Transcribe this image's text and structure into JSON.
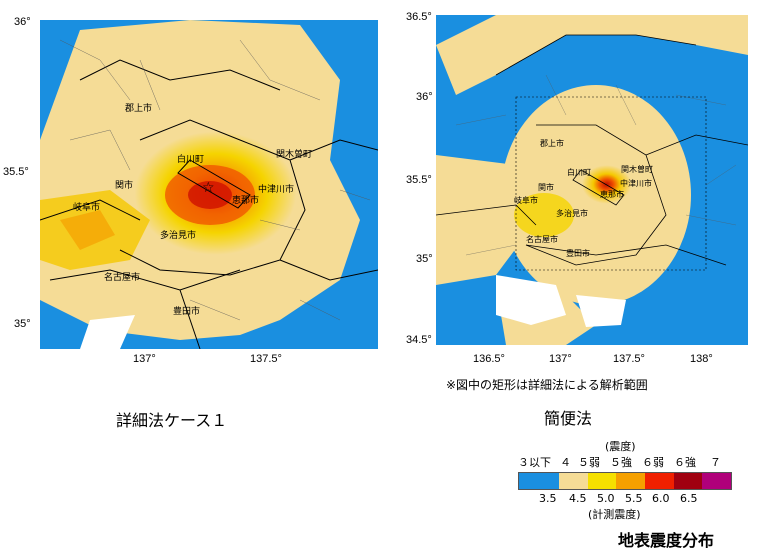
{
  "map_left": {
    "lat_ticks": [
      "36°",
      "35.5°",
      "35°"
    ],
    "lon_ticks": [
      "137°",
      "137.5°"
    ],
    "caption": "詳細法ケース１",
    "cities": [
      "郡上市",
      "白川町",
      "関市",
      "岐阜市",
      "中津川市",
      "恵那市",
      "多治見市",
      "名古屋市",
      "豊田市",
      "関木曽町"
    ]
  },
  "map_right": {
    "lat_ticks": [
      "36.5°",
      "36°",
      "35.5°",
      "35°",
      "34.5°"
    ],
    "lon_ticks": [
      "136.5°",
      "137°",
      "137.5°",
      "138°"
    ],
    "caption": "簡便法",
    "note": "※図中の矩形は詳細法による解析範囲",
    "cities": [
      "郡上市",
      "白川町",
      "関市",
      "岐阜市",
      "中津川市",
      "恵那市",
      "多治見市",
      "名古屋市",
      "豊田市",
      "関木曽町"
    ]
  },
  "legend": {
    "header": "(震度)",
    "intensity_labels": [
      "３以下",
      "４",
      "５弱",
      "５強",
      "６弱",
      "６強",
      "７"
    ],
    "values": [
      "3.5",
      "4.5",
      "5.0",
      "5.5",
      "6.0",
      "6.5"
    ],
    "footer": "(計測震度)",
    "colors": [
      "#1a8fe0",
      "#f5dc96",
      "#f5e000",
      "#f5a000",
      "#f02000",
      "#a00010",
      "#b0007a"
    ]
  },
  "title": "地表震度分布"
}
